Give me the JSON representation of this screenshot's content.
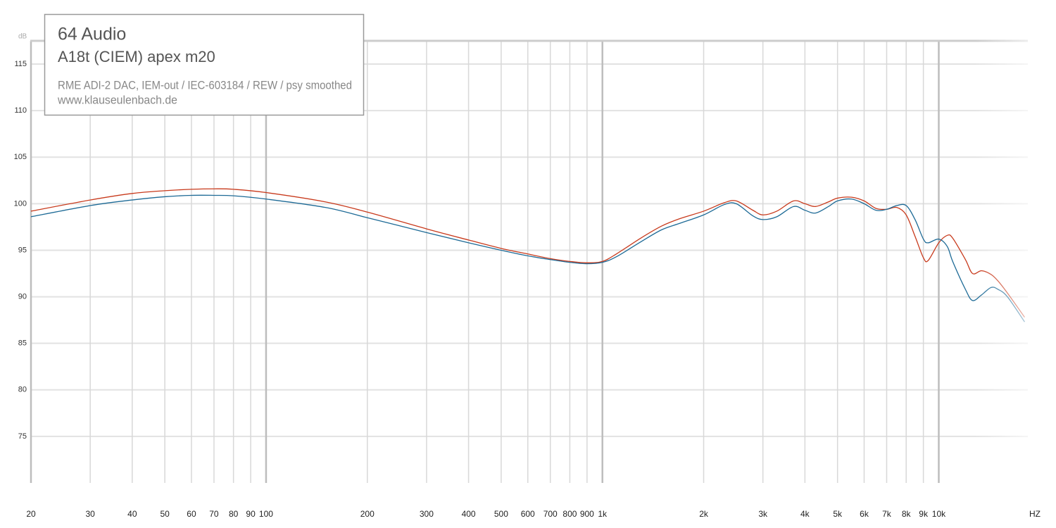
{
  "chart_data": {
    "type": "line",
    "title": "64 Audio",
    "subtitle": "A18t (CIEM) apex m20",
    "notes": [
      "RME ADI-2 DAC, IEM-out / IEC-603184 / REW / psy smoothed",
      "www.klauseulenbach.de"
    ],
    "y_label": "dB",
    "x_label": "HZ",
    "log_x": true,
    "grid": true,
    "xlim": [
      20,
      18400
    ],
    "ylim": [
      70,
      117.5
    ],
    "yticks": [
      75,
      80,
      85,
      90,
      95,
      100,
      105,
      110,
      115
    ],
    "xticks": [
      20,
      30,
      40,
      50,
      60,
      70,
      80,
      90,
      100,
      200,
      300,
      400,
      500,
      600,
      700,
      800,
      900,
      {
        "value": 1000,
        "label": "1k"
      },
      {
        "value": 2000,
        "label": "2k"
      },
      {
        "value": 3000,
        "label": "3k"
      },
      {
        "value": 4000,
        "label": "4k"
      },
      {
        "value": 5000,
        "label": "5k"
      },
      {
        "value": 6000,
        "label": "6k"
      },
      {
        "value": 7000,
        "label": "7k"
      },
      {
        "value": 8000,
        "label": "8k"
      },
      {
        "value": 9000,
        "label": "9k"
      },
      {
        "value": 10000,
        "label": "10k"
      }
    ],
    "x": [
      20,
      30,
      40,
      50,
      60,
      70,
      80,
      100,
      150,
      200,
      300,
      400,
      500,
      600,
      700,
      800,
      900,
      1000,
      1100,
      1300,
      1500,
      1700,
      2000,
      2300,
      2500,
      2800,
      3000,
      3300,
      3700,
      4000,
      4300,
      4700,
      5000,
      5500,
      6000,
      6500,
      7000,
      7500,
      8000,
      8500,
      9000,
      9300,
      10000,
      10600,
      11000,
      12000,
      12600,
      13400,
      14300,
      15000,
      16000,
      18000
    ],
    "series": [
      {
        "color": "#c83a1c",
        "values": [
          99.2,
          100.4,
          101.1,
          101.4,
          101.55,
          101.6,
          101.55,
          101.2,
          100.2,
          99.1,
          97.3,
          96.1,
          95.2,
          94.6,
          94.1,
          93.8,
          93.65,
          93.8,
          94.6,
          96.3,
          97.6,
          98.4,
          99.2,
          100.1,
          100.3,
          99.3,
          98.8,
          99.2,
          100.3,
          100.0,
          99.7,
          100.2,
          100.6,
          100.7,
          100.3,
          99.5,
          99.4,
          99.6,
          98.8,
          96.5,
          94.2,
          93.9,
          95.8,
          96.6,
          96.3,
          94.0,
          92.5,
          92.8,
          92.4,
          91.7,
          90.4,
          87.8
        ]
      },
      {
        "color": "#1d6a96",
        "values": [
          98.6,
          99.8,
          100.4,
          100.75,
          100.9,
          100.9,
          100.85,
          100.5,
          99.6,
          98.5,
          96.9,
          95.8,
          95.0,
          94.4,
          94.0,
          93.7,
          93.55,
          93.7,
          94.3,
          95.9,
          97.2,
          97.9,
          98.8,
          99.9,
          100.0,
          98.7,
          98.3,
          98.6,
          99.7,
          99.3,
          99.0,
          99.7,
          100.3,
          100.5,
          100.0,
          99.3,
          99.4,
          99.8,
          99.8,
          98.3,
          96.2,
          95.8,
          96.2,
          95.4,
          93.8,
          90.8,
          89.6,
          90.2,
          91.0,
          90.8,
          90.0,
          87.3
        ]
      }
    ]
  }
}
